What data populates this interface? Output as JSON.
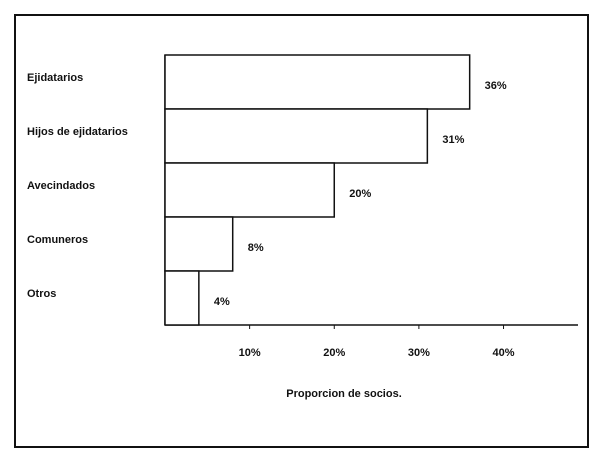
{
  "chart_data": {
    "type": "barh",
    "categories": [
      "Ejidatarios",
      "Hijos de ejidatarios",
      "Avecindados",
      "Comuneros",
      "Otros"
    ],
    "values": [
      36,
      31,
      20,
      8,
      4
    ],
    "value_labels": [
      "36%",
      "31%",
      "20%",
      "8%",
      "4%"
    ],
    "color": "#ffffff",
    "xlabel": "Proporcion de socios.",
    "xlim": [
      0,
      48.8
    ],
    "xticks": [
      {
        "value": 10,
        "label": "10%"
      },
      {
        "value": 20,
        "label": "20%"
      },
      {
        "value": 30,
        "label": "30%"
      },
      {
        "value": 40,
        "label": "40%"
      }
    ],
    "grid": false
  }
}
